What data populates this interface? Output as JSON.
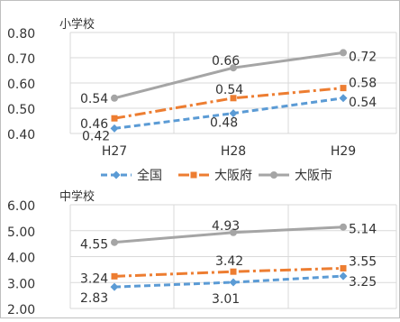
{
  "chart_data": [
    {
      "type": "line",
      "title": "小学校",
      "categories": [
        "H27",
        "H28",
        "H29"
      ],
      "ylim": [
        0.4,
        0.8
      ],
      "yticks": [
        "0.40",
        "0.50",
        "0.60",
        "0.70",
        "0.80"
      ],
      "grid": true,
      "legend_position": "bottom",
      "series": [
        {
          "name": "全国",
          "values": [
            0.42,
            0.48,
            0.54
          ],
          "labels": [
            "0.42",
            "0.48",
            "0.54"
          ],
          "color": "#5b9bd5",
          "style": "dashed",
          "marker": "diamond"
        },
        {
          "name": "大阪府",
          "values": [
            0.46,
            0.54,
            0.58
          ],
          "labels": [
            "0.46",
            "0.54",
            "0.58"
          ],
          "color": "#ed7d31",
          "style": "dashdot",
          "marker": "square"
        },
        {
          "name": "大阪市",
          "values": [
            0.54,
            0.66,
            0.72
          ],
          "labels": [
            "0.54",
            "0.66",
            "0.72"
          ],
          "color": "#a5a5a5",
          "style": "solid",
          "marker": "circle"
        }
      ]
    },
    {
      "type": "line",
      "title": "中学校",
      "categories": [
        "H27",
        "H28",
        "H29"
      ],
      "ylim": [
        2.0,
        6.0
      ],
      "yticks": [
        "2.00",
        "3.00",
        "4.00",
        "5.00",
        "6.00"
      ],
      "grid": true,
      "series": [
        {
          "name": "全国",
          "values": [
            2.83,
            3.01,
            3.25
          ],
          "labels": [
            "2.83",
            "3.01",
            "3.25"
          ],
          "color": "#5b9bd5",
          "style": "dashed",
          "marker": "diamond"
        },
        {
          "name": "大阪府",
          "values": [
            3.24,
            3.42,
            3.55
          ],
          "labels": [
            "3.24",
            "3.42",
            "3.55"
          ],
          "color": "#ed7d31",
          "style": "dashdot",
          "marker": "square"
        },
        {
          "name": "大阪市",
          "values": [
            4.55,
            4.93,
            5.14
          ],
          "labels": [
            "4.55",
            "4.93",
            "5.14"
          ],
          "color": "#a5a5a5",
          "style": "solid",
          "marker": "circle"
        }
      ]
    }
  ]
}
